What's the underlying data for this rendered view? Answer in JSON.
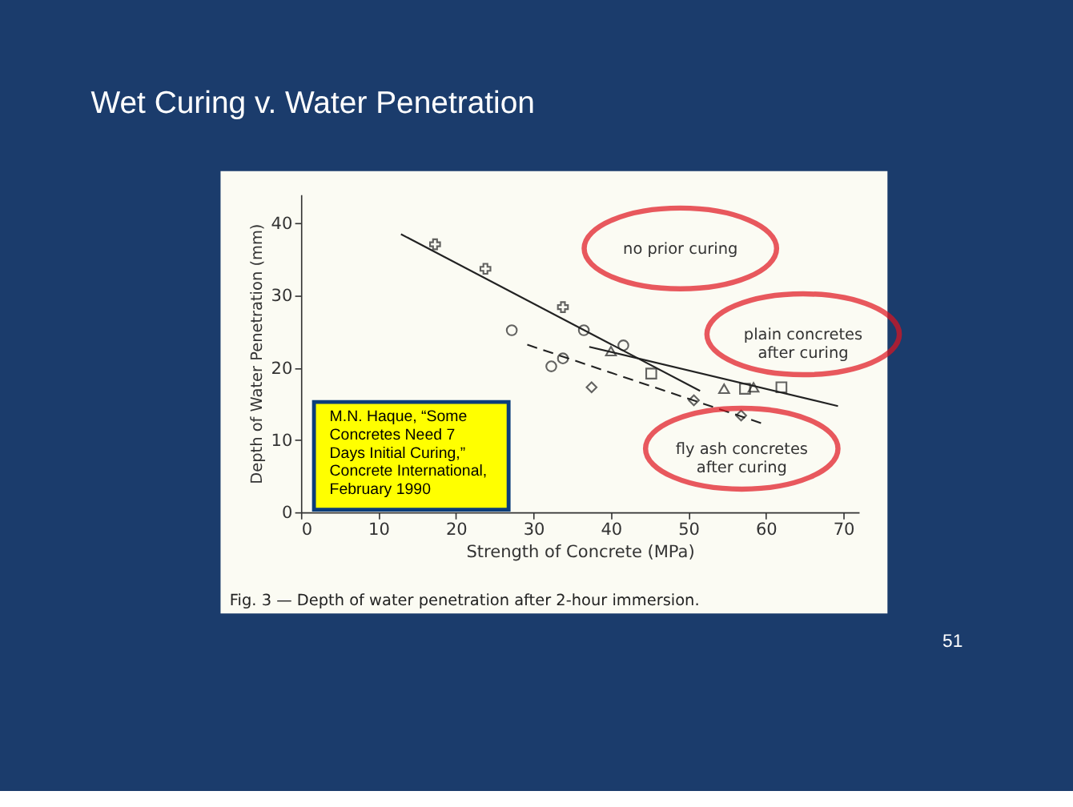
{
  "chart_data": {
    "type": "scatter",
    "title": "Wet Curing v. Water Penetration",
    "xlabel": "Strength of Concrete (MPa)",
    "ylabel": "Depth of Water Penetration (mm)",
    "xlim": [
      0,
      72
    ],
    "ylim": [
      0,
      44
    ],
    "xticks": [
      0,
      10,
      20,
      30,
      40,
      50,
      60,
      70
    ],
    "yticks": [
      0,
      10,
      20,
      30,
      40
    ],
    "series": [
      {
        "marker": "cross",
        "color": "#222222",
        "x": [
          17.3,
          23.8,
          33.8
        ],
        "values": [
          37.1,
          33.7,
          28.4
        ]
      },
      {
        "marker": "circle",
        "color": "#222222",
        "x": [
          27.2,
          32.3,
          33.8,
          36.5,
          41.6
        ],
        "values": [
          25.2,
          20.2,
          21.3,
          25.2,
          23.1
        ]
      },
      {
        "marker": "triangle",
        "color": "#222222",
        "x": [
          40.0,
          54.6,
          58.4
        ],
        "values": [
          22.3,
          17.1,
          17.3
        ]
      },
      {
        "marker": "square",
        "color": "#222222",
        "x": [
          45.2,
          57.3,
          62.0
        ],
        "values": [
          19.2,
          17.1,
          17.3
        ]
      },
      {
        "marker": "diamond",
        "color": "#222222",
        "x": [
          37.5,
          50.7,
          56.8
        ],
        "values": [
          17.3,
          15.5,
          13.4
        ]
      },
      {
        "type": "line",
        "line_style": "solid",
        "color": "#222222",
        "x": [
          12.9,
          51.5
        ],
        "values": [
          38.5,
          16.8
        ]
      },
      {
        "type": "line",
        "line_style": "solid",
        "color": "#222222",
        "x": [
          37.2,
          69.3
        ],
        "values": [
          22.9,
          14.7
        ]
      },
      {
        "type": "line",
        "line_style": "dashed",
        "color": "#222222",
        "x": [
          29.2,
          59.5
        ],
        "values": [
          23.2,
          12.3
        ]
      }
    ],
    "annotations": [
      "no prior curing",
      "plain concretes\nafter curing",
      "fly ash concretes\nafter curing",
      "M.N. Haque, “Some\nConcretes Need 7\nDays Initial Curing,”\nConcrete International,\nFebruary 1990",
      "Fig. 3 — Depth of water penetration after 2-hour immersion.",
      "51"
    ]
  }
}
